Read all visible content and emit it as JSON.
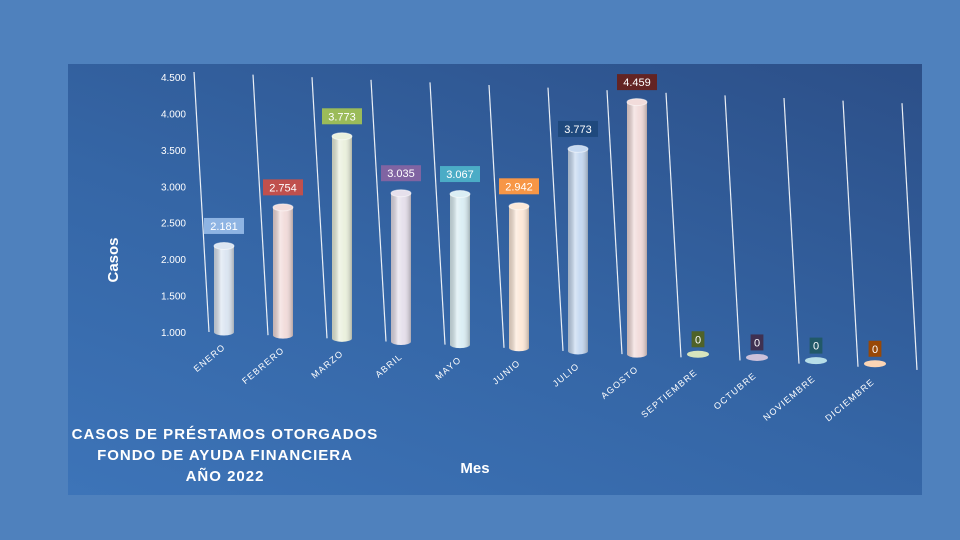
{
  "chart_data": {
    "type": "bar",
    "title_lines": [
      "CASOS DE PRÉSTAMOS OTORGADOS",
      "FONDO DE AYUDA FINANCIERA",
      "AÑO 2022"
    ],
    "xlabel": "Mes",
    "ylabel": "Casos",
    "ylim": [
      1000,
      4500
    ],
    "yticks": [
      "1.000",
      "1.500",
      "2.000",
      "2.500",
      "3.000",
      "3.500",
      "4.000",
      "4.500"
    ],
    "ytick_values": [
      1000,
      1500,
      2000,
      2500,
      3000,
      3500,
      4000,
      4500
    ],
    "categories": [
      "ENERO",
      "FEBRERO",
      "MARZO",
      "ABRIL",
      "MAYO",
      "JUNIO",
      "JULIO",
      "AGOSTO",
      "SEPTIEMBRE",
      "OCTUBRE",
      "NOVIEMBRE",
      "DICIEMBRE"
    ],
    "values": [
      2181,
      2754,
      3773,
      3035,
      3067,
      2942,
      3773,
      4459,
      0,
      0,
      0,
      0
    ],
    "value_labels": [
      "2.181",
      "2.754",
      "3.773",
      "3.035",
      "3.067",
      "2.942",
      "3.773",
      "4.459",
      "0",
      "0",
      "0",
      "0"
    ],
    "bar_colors": [
      "#dce6f2",
      "#f2dcdb",
      "#ebf1de",
      "#e6e0ec",
      "#dbeef4",
      "#fde9d9",
      "#c6d9f1",
      "#f2dcdb",
      "#d7e4bd",
      "#ccc1da",
      "#b7dee8",
      "#fcd5b5"
    ],
    "label_colors": [
      "#8eb4e3",
      "#c0504d",
      "#9bbb59",
      "#8064a2",
      "#4bacc6",
      "#f79646",
      "#1f497d",
      "#632423",
      "#4f6228",
      "#3f3151",
      "#215968",
      "#984807"
    ],
    "grid": true,
    "legend": "none"
  }
}
